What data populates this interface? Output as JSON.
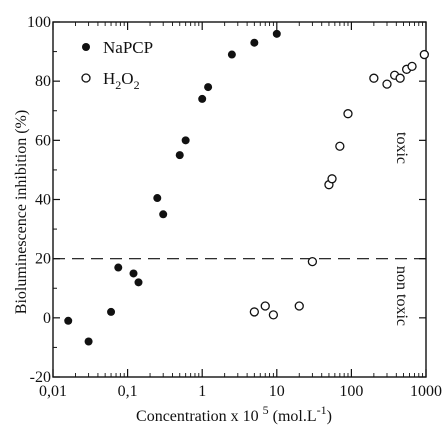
{
  "chart_data": {
    "type": "scatter",
    "x_scale": "log",
    "xlim": [
      0.01,
      1000
    ],
    "ylim": [
      -20,
      100
    ],
    "x_ticks": [
      {
        "value": 0.01,
        "label": "0,01"
      },
      {
        "value": 0.1,
        "label": "0,1"
      },
      {
        "value": 1,
        "label": "1"
      },
      {
        "value": 10,
        "label": "10"
      },
      {
        "value": 100,
        "label": "100"
      },
      {
        "value": 1000,
        "label": "1000"
      }
    ],
    "y_ticks": [
      {
        "value": -20,
        "label": "-20"
      },
      {
        "value": 0,
        "label": "0"
      },
      {
        "value": 20,
        "label": "20"
      },
      {
        "value": 40,
        "label": "40"
      },
      {
        "value": 60,
        "label": "60"
      },
      {
        "value": 80,
        "label": "80"
      },
      {
        "value": 100,
        "label": "100"
      }
    ],
    "xlabel_main": "Concentration x 10",
    "xlabel_sup": "5",
    "xlabel_unit": " (mol.L",
    "xlabel_unit_sup": "-1",
    "xlabel_end": ")",
    "ylabel": "Bioluminescence inhibition (%)",
    "threshold": {
      "y": 20,
      "style": "dashed"
    },
    "annotations": {
      "above": "toxic",
      "below": "non toxic"
    },
    "legend": {
      "position": "top-left"
    },
    "series": [
      {
        "name": "NaPCP",
        "name_parts": {
          "base": "NaPCP",
          "sub": "",
          "tail": ""
        },
        "marker": "filled-circle",
        "points": [
          [
            0.016,
            -1
          ],
          [
            0.03,
            -8
          ],
          [
            0.06,
            2
          ],
          [
            0.075,
            17
          ],
          [
            0.12,
            15
          ],
          [
            0.14,
            12
          ],
          [
            0.25,
            40.5
          ],
          [
            0.3,
            35
          ],
          [
            0.5,
            55
          ],
          [
            0.6,
            60
          ],
          [
            1.0,
            74
          ],
          [
            1.2,
            78
          ],
          [
            2.5,
            89
          ],
          [
            5,
            93
          ],
          [
            10,
            96
          ]
        ]
      },
      {
        "name": "H2O2",
        "name_parts": {
          "base": "H",
          "sub": "2",
          "tail": "O"
        },
        "name_sub2": "2",
        "marker": "open-circle",
        "points": [
          [
            5,
            2
          ],
          [
            7,
            4
          ],
          [
            9,
            1
          ],
          [
            20,
            4
          ],
          [
            30,
            19
          ],
          [
            50,
            45
          ],
          [
            55,
            47
          ],
          [
            70,
            58
          ],
          [
            90,
            69
          ],
          [
            200,
            81
          ],
          [
            300,
            79
          ],
          [
            380,
            82
          ],
          [
            450,
            81
          ],
          [
            550,
            84
          ],
          [
            650,
            85
          ],
          [
            950,
            89
          ]
        ]
      }
    ]
  }
}
